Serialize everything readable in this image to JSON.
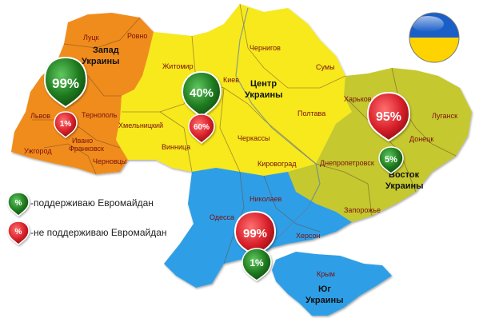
{
  "colors": {
    "west": "#f08c1e",
    "center": "#f7e91a",
    "east": "#c5c82e",
    "south": "#2f9fe6",
    "support": "#1f7a1f",
    "oppose": "#d8202a",
    "flag_blue": "#1a5fc8",
    "flag_yellow": "#ffd300"
  },
  "regions": {
    "west": {
      "line1": "Запад",
      "line2": "Украины"
    },
    "center": {
      "line1": "Центр",
      "line2": "Украины"
    },
    "east": {
      "line1": "Восток",
      "line2": "Украины"
    },
    "south": {
      "line1": "Юг",
      "line2": "Украины"
    }
  },
  "cities": {
    "lutsk": "Луцк",
    "rovno": "Ровно",
    "lvov": "Львов",
    "ternopol": "Тернополь",
    "uzhgorod": "Ужгород",
    "ivano": "Ивано",
    "frankovsk": "Франковск",
    "chernovtsy": "Черновцы",
    "zhitomir": "Житомир",
    "kiev": "Киев",
    "chernigov": "Чернигов",
    "sumy": "Сумы",
    "khmelnitsky": "Хмельницкий",
    "vinnitsa": "Винница",
    "cherkassy": "Черкассы",
    "poltava": "Полтава",
    "kirovograd": "Кировоград",
    "kharkov": "Харьков",
    "lugansk": "Луганск",
    "donetsk": "Донецк",
    "dnepropetrovsk": "Днепропетровск",
    "zaporozhye": "Запорожье",
    "nikolaev": "Николаев",
    "odessa": "Одесса",
    "kherson": "Херсон",
    "krym": "Крым"
  },
  "stats": {
    "west": {
      "support": "99%",
      "oppose": "1%"
    },
    "center": {
      "support": "40%",
      "oppose": "60%"
    },
    "east": {
      "support": "5%",
      "oppose": "95%"
    },
    "south": {
      "support": "1%",
      "oppose": "99%"
    }
  },
  "legend": {
    "marker_symbol": "%",
    "support_text": "-поддерживаю Евромайдан",
    "oppose_text": "-не поддерживаю  Евромайдан"
  },
  "flag_icon": "ukraine-flag-icon"
}
